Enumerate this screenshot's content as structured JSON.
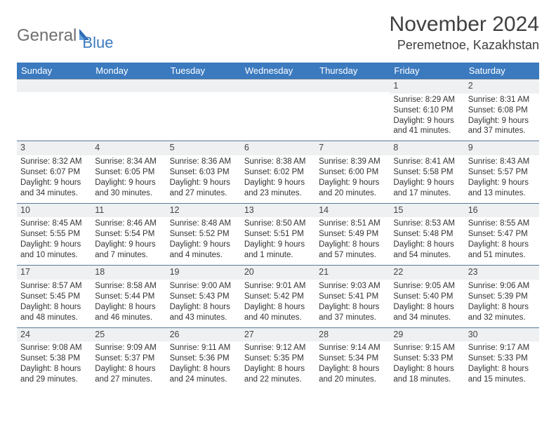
{
  "logo": {
    "text1": "General",
    "text2": "Blue"
  },
  "title": "November 2024",
  "location": "Peremetnoe, Kazakhstan",
  "colors": {
    "header_bg": "#3c7abf",
    "header_text": "#ffffff",
    "daynum_bg": "#eef0f2",
    "row_border": "#5b7a99",
    "body_text": "#333333"
  },
  "weekdays": [
    "Sunday",
    "Monday",
    "Tuesday",
    "Wednesday",
    "Thursday",
    "Friday",
    "Saturday"
  ],
  "weeks": [
    [
      null,
      null,
      null,
      null,
      null,
      {
        "n": "1",
        "sr": "8:29 AM",
        "ss": "6:10 PM",
        "dl": "9 hours and 41 minutes."
      },
      {
        "n": "2",
        "sr": "8:31 AM",
        "ss": "6:08 PM",
        "dl": "9 hours and 37 minutes."
      }
    ],
    [
      {
        "n": "3",
        "sr": "8:32 AM",
        "ss": "6:07 PM",
        "dl": "9 hours and 34 minutes."
      },
      {
        "n": "4",
        "sr": "8:34 AM",
        "ss": "6:05 PM",
        "dl": "9 hours and 30 minutes."
      },
      {
        "n": "5",
        "sr": "8:36 AM",
        "ss": "6:03 PM",
        "dl": "9 hours and 27 minutes."
      },
      {
        "n": "6",
        "sr": "8:38 AM",
        "ss": "6:02 PM",
        "dl": "9 hours and 23 minutes."
      },
      {
        "n": "7",
        "sr": "8:39 AM",
        "ss": "6:00 PM",
        "dl": "9 hours and 20 minutes."
      },
      {
        "n": "8",
        "sr": "8:41 AM",
        "ss": "5:58 PM",
        "dl": "9 hours and 17 minutes."
      },
      {
        "n": "9",
        "sr": "8:43 AM",
        "ss": "5:57 PM",
        "dl": "9 hours and 13 minutes."
      }
    ],
    [
      {
        "n": "10",
        "sr": "8:45 AM",
        "ss": "5:55 PM",
        "dl": "9 hours and 10 minutes."
      },
      {
        "n": "11",
        "sr": "8:46 AM",
        "ss": "5:54 PM",
        "dl": "9 hours and 7 minutes."
      },
      {
        "n": "12",
        "sr": "8:48 AM",
        "ss": "5:52 PM",
        "dl": "9 hours and 4 minutes."
      },
      {
        "n": "13",
        "sr": "8:50 AM",
        "ss": "5:51 PM",
        "dl": "9 hours and 1 minute."
      },
      {
        "n": "14",
        "sr": "8:51 AM",
        "ss": "5:49 PM",
        "dl": "8 hours and 57 minutes."
      },
      {
        "n": "15",
        "sr": "8:53 AM",
        "ss": "5:48 PM",
        "dl": "8 hours and 54 minutes."
      },
      {
        "n": "16",
        "sr": "8:55 AM",
        "ss": "5:47 PM",
        "dl": "8 hours and 51 minutes."
      }
    ],
    [
      {
        "n": "17",
        "sr": "8:57 AM",
        "ss": "5:45 PM",
        "dl": "8 hours and 48 minutes."
      },
      {
        "n": "18",
        "sr": "8:58 AM",
        "ss": "5:44 PM",
        "dl": "8 hours and 46 minutes."
      },
      {
        "n": "19",
        "sr": "9:00 AM",
        "ss": "5:43 PM",
        "dl": "8 hours and 43 minutes."
      },
      {
        "n": "20",
        "sr": "9:01 AM",
        "ss": "5:42 PM",
        "dl": "8 hours and 40 minutes."
      },
      {
        "n": "21",
        "sr": "9:03 AM",
        "ss": "5:41 PM",
        "dl": "8 hours and 37 minutes."
      },
      {
        "n": "22",
        "sr": "9:05 AM",
        "ss": "5:40 PM",
        "dl": "8 hours and 34 minutes."
      },
      {
        "n": "23",
        "sr": "9:06 AM",
        "ss": "5:39 PM",
        "dl": "8 hours and 32 minutes."
      }
    ],
    [
      {
        "n": "24",
        "sr": "9:08 AM",
        "ss": "5:38 PM",
        "dl": "8 hours and 29 minutes."
      },
      {
        "n": "25",
        "sr": "9:09 AM",
        "ss": "5:37 PM",
        "dl": "8 hours and 27 minutes."
      },
      {
        "n": "26",
        "sr": "9:11 AM",
        "ss": "5:36 PM",
        "dl": "8 hours and 24 minutes."
      },
      {
        "n": "27",
        "sr": "9:12 AM",
        "ss": "5:35 PM",
        "dl": "8 hours and 22 minutes."
      },
      {
        "n": "28",
        "sr": "9:14 AM",
        "ss": "5:34 PM",
        "dl": "8 hours and 20 minutes."
      },
      {
        "n": "29",
        "sr": "9:15 AM",
        "ss": "5:33 PM",
        "dl": "8 hours and 18 minutes."
      },
      {
        "n": "30",
        "sr": "9:17 AM",
        "ss": "5:33 PM",
        "dl": "8 hours and 15 minutes."
      }
    ]
  ],
  "labels": {
    "sunrise": "Sunrise: ",
    "sunset": "Sunset: ",
    "daylight": "Daylight: "
  }
}
